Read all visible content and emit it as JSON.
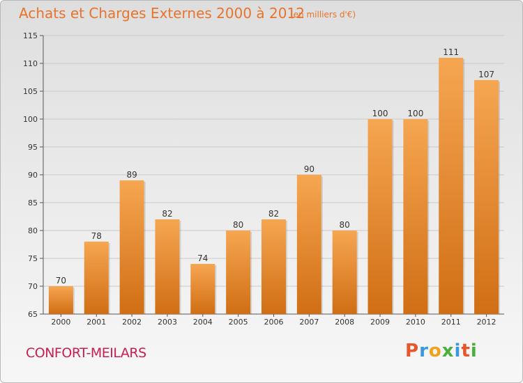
{
  "header": {
    "title": "Achats et Charges Externes 2000 à 2012",
    "subtitle": "(en milliers d'€)"
  },
  "commune": "CONFORT-MEILARS",
  "logo": {
    "text": "Proxiti",
    "letter_colors": [
      "#e8562c",
      "#3a9ad9",
      "#f0a21c",
      "#4caf3c",
      "#3a9ad9",
      "#e8562c",
      "#4caf3c"
    ]
  },
  "colors": {
    "bar_top": "#f6a651",
    "bar_bottom": "#d06e14",
    "accent": "#e8732c"
  },
  "chart_data": {
    "type": "bar",
    "title": "Achats et Charges Externes 2000 à 2012",
    "subtitle": "(en milliers d'€)",
    "categories": [
      "2000",
      "2001",
      "2002",
      "2003",
      "2004",
      "2005",
      "2006",
      "2007",
      "2008",
      "2009",
      "2010",
      "2011",
      "2012"
    ],
    "values": [
      70,
      78,
      89,
      82,
      74,
      80,
      82,
      90,
      80,
      100,
      100,
      111,
      107
    ],
    "ylim": [
      65,
      115
    ],
    "yticks": [
      65,
      70,
      75,
      80,
      85,
      90,
      95,
      100,
      105,
      110,
      115
    ],
    "grid": true,
    "legend": "none"
  }
}
